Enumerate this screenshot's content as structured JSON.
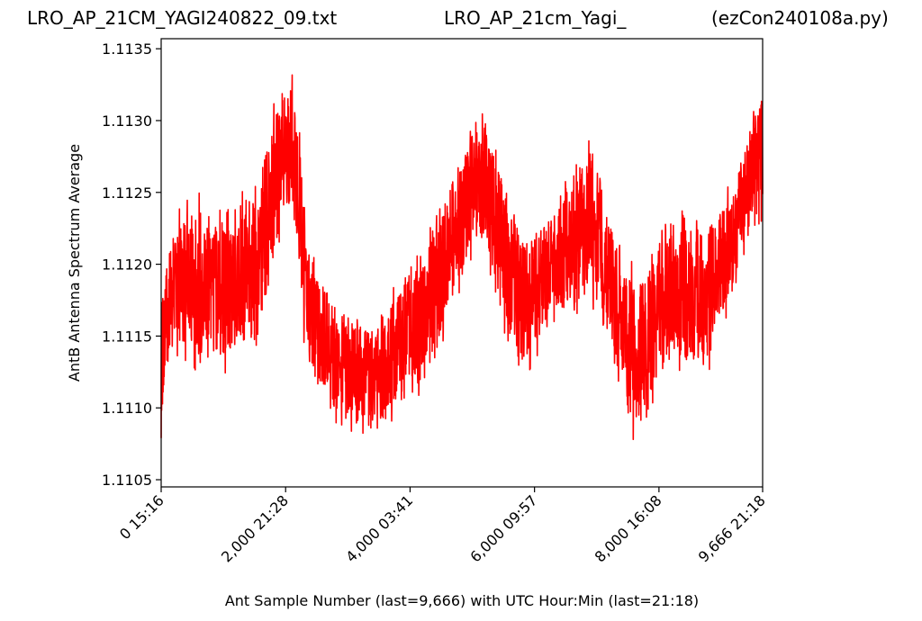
{
  "titles": {
    "left": "LRO_AP_21CM_YAGI240822_09.txt",
    "center": "LRO_AP_21cm_Yagi_",
    "right": "(ezCon240108a.py)"
  },
  "chart_data": {
    "type": "line",
    "xlabel": "Ant Sample Number (last=9,666) with UTC Hour:Min (last=21:18)",
    "ylabel": "AntB Antenna Spectrum Average",
    "xlim": [
      0,
      9666
    ],
    "ylim": [
      1.11045,
      1.11357
    ],
    "x_ticks": [
      {
        "value": 0,
        "label": "0  15:16"
      },
      {
        "value": 2000,
        "label": "2,000  21:28"
      },
      {
        "value": 4000,
        "label": "4,000  03:41"
      },
      {
        "value": 6000,
        "label": "6,000  09:57"
      },
      {
        "value": 8000,
        "label": "8,000  16:08"
      },
      {
        "value": 9666,
        "label": "9,666  21:18"
      }
    ],
    "y_ticks": [
      {
        "value": 1.1105,
        "label": "1.1105"
      },
      {
        "value": 1.111,
        "label": "1.1110"
      },
      {
        "value": 1.1115,
        "label": "1.1115"
      },
      {
        "value": 1.112,
        "label": "1.1120"
      },
      {
        "value": 1.1125,
        "label": "1.1125"
      },
      {
        "value": 1.113,
        "label": "1.1130"
      },
      {
        "value": 1.1135,
        "label": "1.1135"
      }
    ],
    "grid": false,
    "series": [
      {
        "color": "#ff0000",
        "x": [
          0,
          50,
          100,
          200,
          400,
          600,
          800,
          1000,
          1200,
          1400,
          1600,
          1800,
          1900,
          2000,
          2100,
          2200,
          2300,
          2400,
          2600,
          2800,
          3000,
          3200,
          3400,
          3600,
          3800,
          4000,
          4200,
          4400,
          4600,
          4800,
          5000,
          5200,
          5400,
          5600,
          5700,
          5800,
          6000,
          6200,
          6400,
          6600,
          6800,
          6900,
          7000,
          7200,
          7400,
          7600,
          7800,
          7900,
          8000,
          8200,
          8400,
          8600,
          8800,
          9000,
          9200,
          9400,
          9500,
          9600,
          9666
        ],
        "band_low": [
          1.1106,
          1.1111,
          1.1113,
          1.1113,
          1.1113,
          1.1112,
          1.1113,
          1.1112,
          1.1113,
          1.1113,
          1.1115,
          1.1118,
          1.1121,
          1.1123,
          1.1122,
          1.112,
          1.1114,
          1.1111,
          1.111,
          1.1109,
          1.1108,
          1.1108,
          1.1108,
          1.1108,
          1.111,
          1.1111,
          1.111,
          1.1112,
          1.1116,
          1.1118,
          1.112,
          1.1121,
          1.1117,
          1.1114,
          1.1113,
          1.1112,
          1.1113,
          1.1115,
          1.1116,
          1.1116,
          1.1117,
          1.1117,
          1.1116,
          1.1114,
          1.111,
          1.1107,
          1.1109,
          1.111,
          1.1111,
          1.1113,
          1.1112,
          1.1112,
          1.1112,
          1.1115,
          1.1118,
          1.1121,
          1.1122,
          1.1122,
          1.1123
        ],
        "band_high": [
          1.1118,
          1.112,
          1.1122,
          1.1123,
          1.1125,
          1.1125,
          1.1124,
          1.1124,
          1.1124,
          1.1126,
          1.1128,
          1.1131,
          1.1133,
          1.1134,
          1.1134,
          1.1131,
          1.1125,
          1.1122,
          1.1119,
          1.1117,
          1.1117,
          1.1117,
          1.1116,
          1.1118,
          1.1119,
          1.1121,
          1.1121,
          1.1124,
          1.1126,
          1.1128,
          1.113,
          1.1131,
          1.1129,
          1.1125,
          1.1123,
          1.1123,
          1.1123,
          1.1124,
          1.1125,
          1.1127,
          1.1128,
          1.1129,
          1.1128,
          1.1125,
          1.1121,
          1.112,
          1.1121,
          1.1122,
          1.1123,
          1.1123,
          1.1124,
          1.1124,
          1.1124,
          1.1125,
          1.1126,
          1.1129,
          1.1131,
          1.1132,
          1.1133
        ]
      }
    ]
  }
}
